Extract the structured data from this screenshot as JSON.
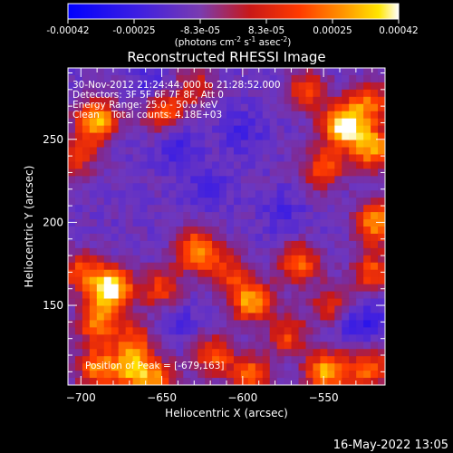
{
  "colorbar": {
    "tick_labels": [
      "-0.00042",
      "-0.00025",
      "-8.3e-05",
      "8.3e-05",
      "0.00025",
      "0.00042"
    ],
    "units_prefix": "(photons cm",
    "units_exp1": "-2",
    "units_mid": " s",
    "units_exp2": "-1",
    "units_mid2": " asec",
    "units_exp3": "-2",
    "units_suffix": ")"
  },
  "title": "Reconstructed RHESSI Image",
  "overlay": {
    "time_range": "30-Nov-2012 21:24:44.000 to 21:28:52.000",
    "detectors": "Detectors: 3F 5F 6F 7F 8F, Att 0",
    "energy": "Energy Range: 25.0 - 50.0 keV",
    "clean": "Clean    Total counts: 4.18E+03",
    "peak": "Position of Peak = [-679,163]"
  },
  "footer": {
    "timestamp": "16-May-2022 13:05"
  },
  "chart_data": {
    "type": "heatmap",
    "title": "Reconstructed RHESSI Image",
    "xlabel": "Heliocentric X (arcsec)",
    "ylabel": "Heliocentric Y (arcsec)",
    "xlim": [
      -708,
      -512
    ],
    "ylim": [
      102,
      293
    ],
    "x_ticks": [
      -700,
      -650,
      -600,
      -550
    ],
    "y_ticks": [
      150,
      200,
      250
    ],
    "colorbar_range": [
      -0.00042,
      0.00042
    ],
    "peak_position": [
      -679,
      163
    ],
    "colors": {
      "low": "#0000ff",
      "mid_low": "#5a2cc8",
      "mid": "#7a3cb0",
      "red": "#e01010",
      "orange": "#ff7a00",
      "yellow": "#ffe100",
      "high": "#ffffff"
    },
    "hotspots": [
      {
        "x": -681,
        "y": 160,
        "v": 0.95
      },
      {
        "x": -690,
        "y": 140,
        "v": 0.6
      },
      {
        "x": -700,
        "y": 170,
        "v": 0.5
      },
      {
        "x": -690,
        "y": 262,
        "v": 0.75
      },
      {
        "x": -703,
        "y": 240,
        "v": 0.45
      },
      {
        "x": -650,
        "y": 268,
        "v": 0.6
      },
      {
        "x": -630,
        "y": 282,
        "v": 0.35
      },
      {
        "x": -538,
        "y": 258,
        "v": 0.95
      },
      {
        "x": -520,
        "y": 245,
        "v": 0.7
      },
      {
        "x": -550,
        "y": 232,
        "v": 0.5
      },
      {
        "x": -560,
        "y": 280,
        "v": 0.45
      },
      {
        "x": -518,
        "y": 200,
        "v": 0.65
      },
      {
        "x": -520,
        "y": 170,
        "v": 0.5
      },
      {
        "x": -565,
        "y": 175,
        "v": 0.55
      },
      {
        "x": -545,
        "y": 150,
        "v": 0.4
      },
      {
        "x": -628,
        "y": 183,
        "v": 0.7
      },
      {
        "x": -610,
        "y": 170,
        "v": 0.4
      },
      {
        "x": -595,
        "y": 153,
        "v": 0.7
      },
      {
        "x": -650,
        "y": 160,
        "v": 0.45
      },
      {
        "x": -668,
        "y": 130,
        "v": 0.4
      },
      {
        "x": -572,
        "y": 132,
        "v": 0.45
      },
      {
        "x": -618,
        "y": 120,
        "v": 0.5
      },
      {
        "x": -668,
        "y": 112,
        "v": 0.7
      },
      {
        "x": -690,
        "y": 112,
        "v": 0.6
      },
      {
        "x": -595,
        "y": 108,
        "v": 0.55
      },
      {
        "x": -548,
        "y": 110,
        "v": 0.75
      },
      {
        "x": -522,
        "y": 112,
        "v": 0.55
      },
      {
        "x": -652,
        "y": 105,
        "v": 0.5
      },
      {
        "x": -522,
        "y": 272,
        "v": 0.55
      }
    ],
    "cold_spots": [
      {
        "x": -655,
        "y": 280,
        "v": 0.9
      },
      {
        "x": -640,
        "y": 245,
        "v": 0.7
      },
      {
        "x": -620,
        "y": 220,
        "v": 0.6
      },
      {
        "x": -575,
        "y": 205,
        "v": 0.5
      },
      {
        "x": -600,
        "y": 255,
        "v": 0.6
      },
      {
        "x": -640,
        "y": 140,
        "v": 0.5
      },
      {
        "x": -535,
        "y": 140,
        "v": 0.6
      },
      {
        "x": -520,
        "y": 140,
        "v": 0.6
      }
    ]
  }
}
